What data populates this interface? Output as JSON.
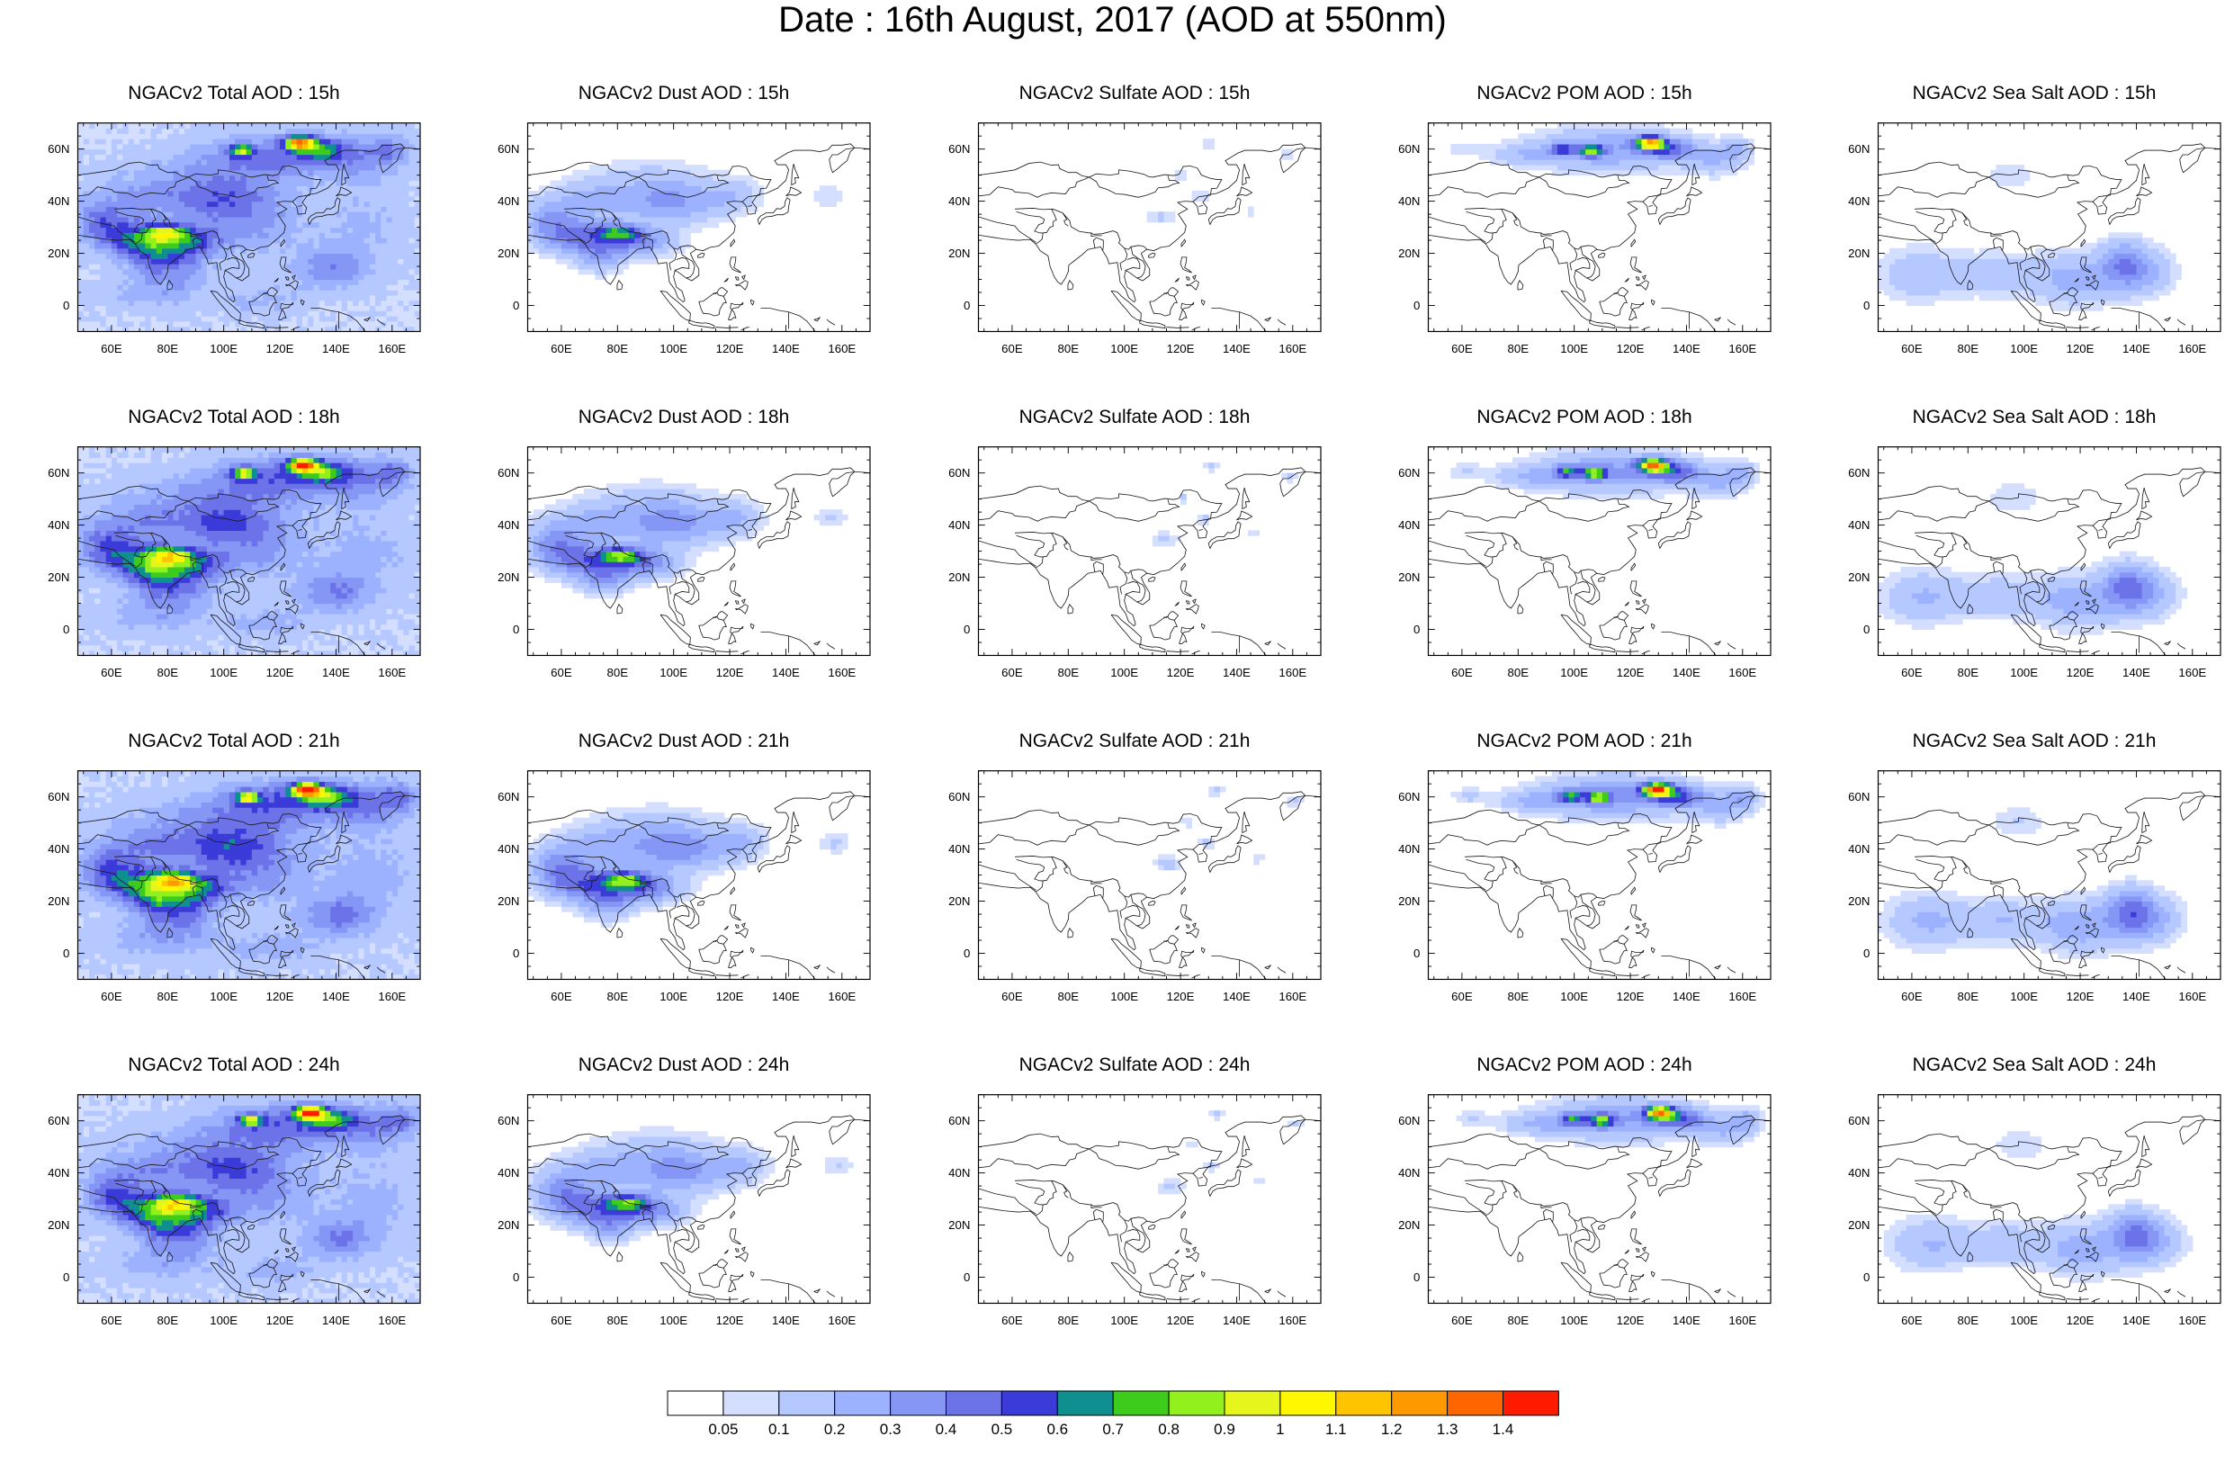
{
  "title": "Date : 16th August, 2017 (AOD at 550nm)",
  "lat_ticks": [
    "60N",
    "40N",
    "20N",
    "0"
  ],
  "lon_ticks": [
    "60E",
    "80E",
    "100E",
    "120E",
    "140E",
    "160E"
  ],
  "panels": [
    {
      "title": "NGACv2 Total AOD : 15h",
      "species": "total",
      "hour": 15
    },
    {
      "title": "NGACv2 Dust AOD : 15h",
      "species": "dust",
      "hour": 15
    },
    {
      "title": "NGACv2 Sulfate AOD : 15h",
      "species": "sulfate",
      "hour": 15
    },
    {
      "title": "NGACv2 POM AOD : 15h",
      "species": "pom",
      "hour": 15
    },
    {
      "title": "NGACv2 Sea Salt AOD : 15h",
      "species": "seasalt",
      "hour": 15
    },
    {
      "title": "NGACv2 Total AOD : 18h",
      "species": "total",
      "hour": 18
    },
    {
      "title": "NGACv2 Dust AOD : 18h",
      "species": "dust",
      "hour": 18
    },
    {
      "title": "NGACv2 Sulfate AOD : 18h",
      "species": "sulfate",
      "hour": 18
    },
    {
      "title": "NGACv2 POM AOD : 18h",
      "species": "pom",
      "hour": 18
    },
    {
      "title": "NGACv2 Sea Salt AOD : 18h",
      "species": "seasalt",
      "hour": 18
    },
    {
      "title": "NGACv2 Total AOD : 21h",
      "species": "total",
      "hour": 21
    },
    {
      "title": "NGACv2 Dust AOD : 21h",
      "species": "dust",
      "hour": 21
    },
    {
      "title": "NGACv2 Sulfate AOD : 21h",
      "species": "sulfate",
      "hour": 21
    },
    {
      "title": "NGACv2 POM AOD : 21h",
      "species": "pom",
      "hour": 21
    },
    {
      "title": "NGACv2 Sea Salt AOD : 21h",
      "species": "seasalt",
      "hour": 21
    },
    {
      "title": "NGACv2 Total AOD : 24h",
      "species": "total",
      "hour": 24
    },
    {
      "title": "NGACv2 Dust AOD : 24h",
      "species": "dust",
      "hour": 24
    },
    {
      "title": "NGACv2 Sulfate AOD : 24h",
      "species": "sulfate",
      "hour": 24
    },
    {
      "title": "NGACv2 POM AOD : 24h",
      "species": "pom",
      "hour": 24
    },
    {
      "title": "NGACv2 Sea Salt  AOD : 24h",
      "species": "seasalt",
      "hour": 24
    }
  ],
  "colorbar": {
    "labels": [
      "0.05",
      "0.1",
      "0.2",
      "0.3",
      "0.4",
      "0.5",
      "0.6",
      "0.7",
      "0.8",
      "0.9",
      "1",
      "1.1",
      "1.2",
      "1.3",
      "1.4"
    ],
    "colors": [
      "#ffffff",
      "#d4dfff",
      "#b5c8ff",
      "#9cb2ff",
      "#8596f5",
      "#6c72e8",
      "#3b3bd9",
      "#0f8f8f",
      "#3ecc1c",
      "#92f01c",
      "#e6f51c",
      "#fff700",
      "#ffc400",
      "#ff9900",
      "#ff6600",
      "#ff1a00"
    ]
  }
}
